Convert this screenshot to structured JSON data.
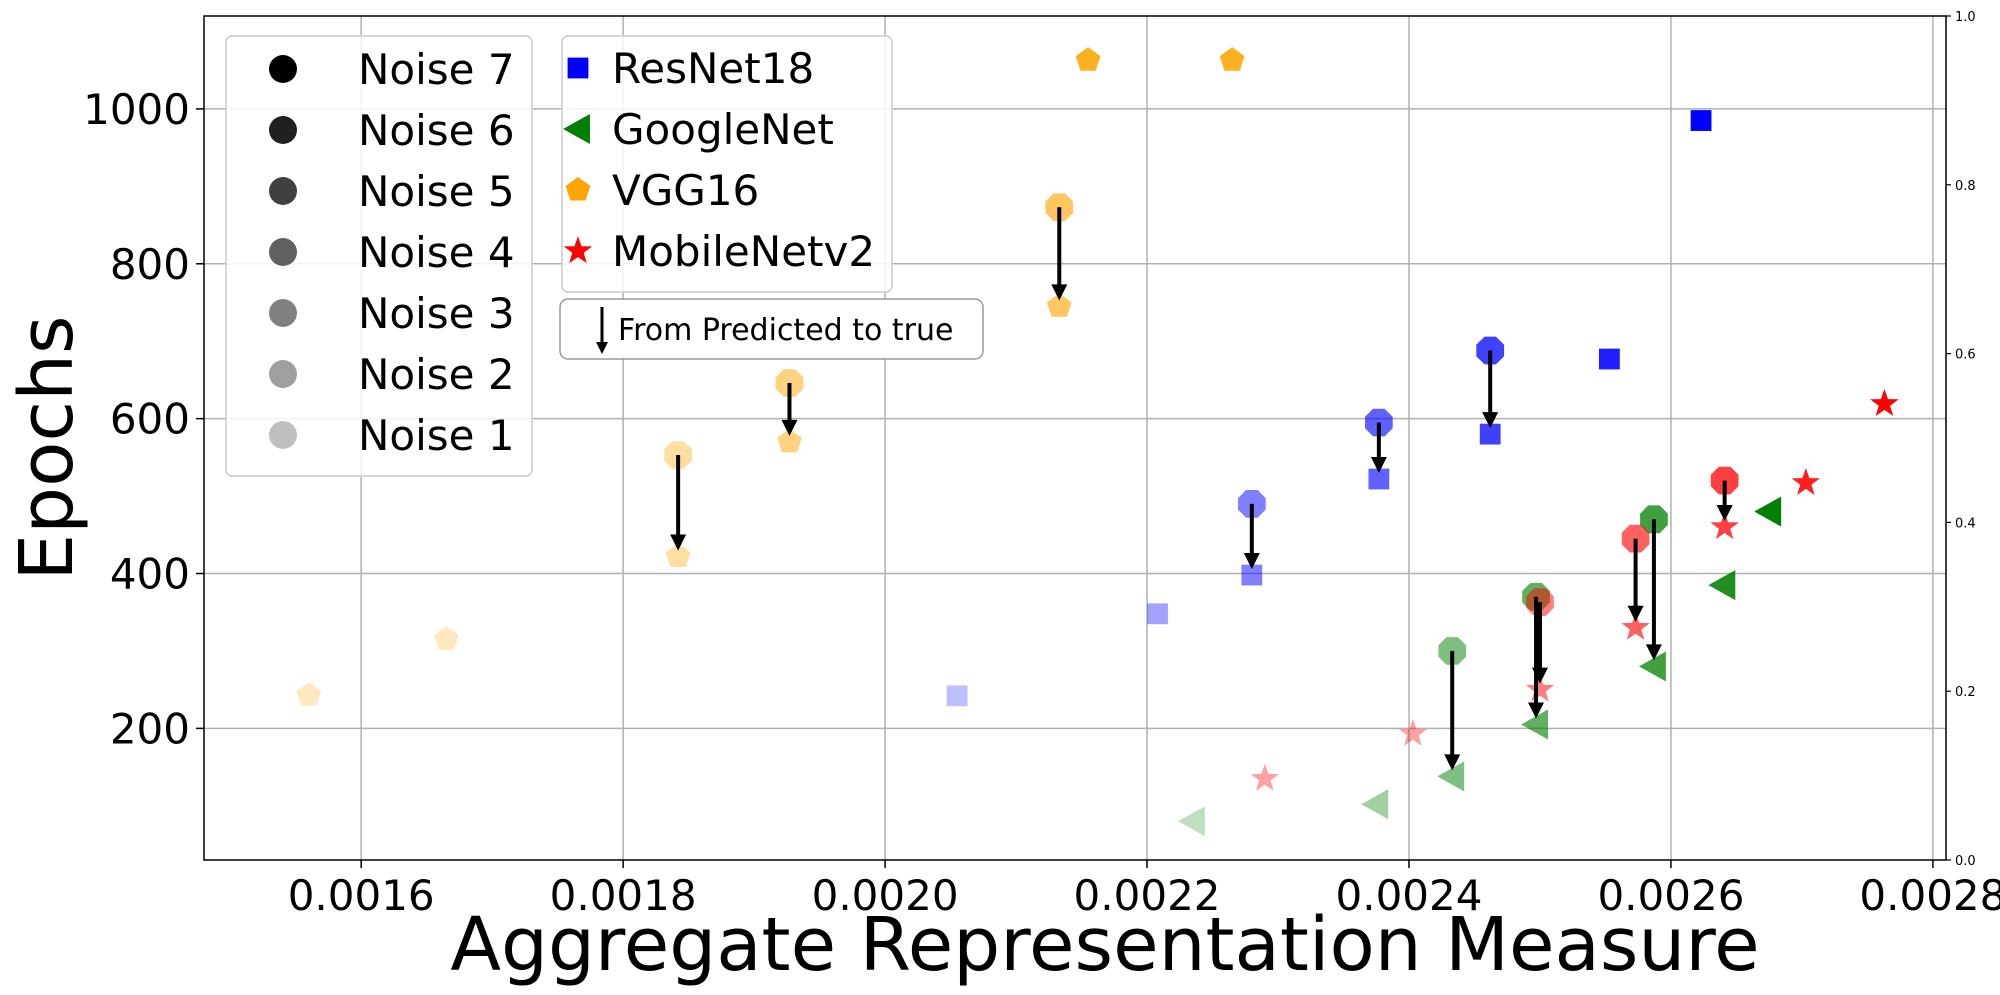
{
  "chart_data": {
    "type": "scatter",
    "title": "",
    "xlabel": "Aggregate Representation Measure",
    "ylabel": "Epochs",
    "xlim": [
      0.00148,
      0.00281
    ],
    "ylim": [
      30,
      1120
    ],
    "y2lim": [
      0,
      1
    ],
    "grid": true,
    "xticks": [
      {
        "v": 0.0016,
        "label": "0.0016"
      },
      {
        "v": 0.0018,
        "label": "0.0018"
      },
      {
        "v": 0.002,
        "label": "0.0020"
      },
      {
        "v": 0.0022,
        "label": "0.0022"
      },
      {
        "v": 0.0024,
        "label": "0.0024"
      },
      {
        "v": 0.0026,
        "label": "0.0026"
      },
      {
        "v": 0.0028,
        "label": "0.0028"
      }
    ],
    "yticks": [
      {
        "v": 200,
        "label": "200"
      },
      {
        "v": 400,
        "label": "400"
      },
      {
        "v": 600,
        "label": "600"
      },
      {
        "v": 800,
        "label": "800"
      },
      {
        "v": 1000,
        "label": "1000"
      }
    ],
    "y2ticks": [
      {
        "v": 0.0,
        "label": "0.0"
      },
      {
        "v": 0.2,
        "label": "0.2"
      },
      {
        "v": 0.4,
        "label": "0.4"
      },
      {
        "v": 0.6,
        "label": "0.6"
      },
      {
        "v": 0.8,
        "label": "0.8"
      },
      {
        "v": 1.0,
        "label": "1.0"
      }
    ],
    "noise_legend": [
      {
        "label": "Noise 7",
        "level": 7
      },
      {
        "label": "Noise 6",
        "level": 6
      },
      {
        "label": "Noise 5",
        "level": 5
      },
      {
        "label": "Noise 4",
        "level": 4
      },
      {
        "label": "Noise 3",
        "level": 3
      },
      {
        "label": "Noise 2",
        "level": 2
      },
      {
        "label": "Noise 1",
        "level": 1
      }
    ],
    "model_legend": [
      {
        "label": "ResNet18",
        "marker": "square",
        "color": "#0000ff"
      },
      {
        "label": "GoogleNet",
        "marker": "triangle-left",
        "color": "#008000"
      },
      {
        "label": "VGG16",
        "marker": "pentagon",
        "color": "#ffa500"
      },
      {
        "label": "MobileNetv2",
        "marker": "star",
        "color": "#ff0000"
      }
    ],
    "arrow_legend": "From Predicted to true",
    "series": [
      {
        "name": "ResNet18",
        "marker": "square",
        "color": "#0000ff",
        "points": [
          {
            "x": 0.002055,
            "y": 242,
            "noise": 1
          },
          {
            "x": 0.002208,
            "y": 348,
            "noise": 2
          },
          {
            "x": 0.00228,
            "y": 398,
            "noise": 3
          },
          {
            "x": 0.002377,
            "y": 522,
            "noise": 4
          },
          {
            "x": 0.002462,
            "y": 580,
            "noise": 5
          },
          {
            "x": 0.002553,
            "y": 677,
            "noise": 6
          },
          {
            "x": 0.002623,
            "y": 985,
            "noise": 7
          }
        ]
      },
      {
        "name": "GoogleNet",
        "marker": "triangle-left",
        "color": "#008000",
        "points": [
          {
            "x": 0.002235,
            "y": 80,
            "noise": 1
          },
          {
            "x": 0.002375,
            "y": 102,
            "noise": 2
          },
          {
            "x": 0.002433,
            "y": 138,
            "noise": 3
          },
          {
            "x": 0.002497,
            "y": 205,
            "noise": 4
          },
          {
            "x": 0.002587,
            "y": 280,
            "noise": 5
          },
          {
            "x": 0.00264,
            "y": 385,
            "noise": 6
          },
          {
            "x": 0.002675,
            "y": 480,
            "noise": 7
          }
        ]
      },
      {
        "name": "VGG16",
        "marker": "pentagon",
        "color": "#ffa500",
        "points": [
          {
            "x": 0.00156,
            "y": 243,
            "noise": 1
          },
          {
            "x": 0.001665,
            "y": 315,
            "noise": 1
          },
          {
            "x": 0.001842,
            "y": 422,
            "noise": 2
          },
          {
            "x": 0.001927,
            "y": 570,
            "noise": 3
          },
          {
            "x": 0.002133,
            "y": 745,
            "noise": 4
          },
          {
            "x": 0.002155,
            "y": 1063,
            "noise": 6
          },
          {
            "x": 0.002265,
            "y": 1063,
            "noise": 6
          }
        ]
      },
      {
        "name": "MobileNetv2",
        "marker": "star",
        "color": "#ff0000",
        "points": [
          {
            "x": 0.00229,
            "y": 135,
            "noise": 2
          },
          {
            "x": 0.002403,
            "y": 193,
            "noise": 2
          },
          {
            "x": 0.0025,
            "y": 250,
            "noise": 3
          },
          {
            "x": 0.002573,
            "y": 330,
            "noise": 4
          },
          {
            "x": 0.002641,
            "y": 460,
            "noise": 5
          },
          {
            "x": 0.002703,
            "y": 517,
            "noise": 6
          },
          {
            "x": 0.002763,
            "y": 619,
            "noise": 7
          }
        ]
      }
    ],
    "predictions": [
      {
        "model": "ResNet18",
        "x": 0.00228,
        "y_pred": 490,
        "y_true": 398,
        "noise": 3
      },
      {
        "model": "ResNet18",
        "x": 0.002377,
        "y_pred": 595,
        "y_true": 522,
        "noise": 4
      },
      {
        "model": "ResNet18",
        "x": 0.002462,
        "y_pred": 688,
        "y_true": 580,
        "noise": 5
      },
      {
        "model": "VGG16",
        "x": 0.001842,
        "y_pred": 553,
        "y_true": 422,
        "noise": 2
      },
      {
        "model": "VGG16",
        "x": 0.001927,
        "y_pred": 646,
        "y_true": 570,
        "noise": 3
      },
      {
        "model": "VGG16",
        "x": 0.002133,
        "y_pred": 873,
        "y_true": 745,
        "noise": 4
      },
      {
        "model": "GoogleNet",
        "x": 0.002433,
        "y_pred": 300,
        "y_true": 138,
        "noise": 3
      },
      {
        "model": "GoogleNet",
        "x": 0.002497,
        "y_pred": 370,
        "y_true": 205,
        "noise": 4
      },
      {
        "model": "GoogleNet",
        "x": 0.002587,
        "y_pred": 470,
        "y_true": 280,
        "noise": 5
      },
      {
        "model": "MobileNetv2",
        "x": 0.0025,
        "y_pred": 363,
        "y_true": 250,
        "noise": 3
      },
      {
        "model": "MobileNetv2",
        "x": 0.002573,
        "y_pred": 445,
        "y_true": 330,
        "noise": 4
      },
      {
        "model": "MobileNetv2",
        "x": 0.002641,
        "y_pred": 520,
        "y_true": 460,
        "noise": 5
      }
    ]
  }
}
